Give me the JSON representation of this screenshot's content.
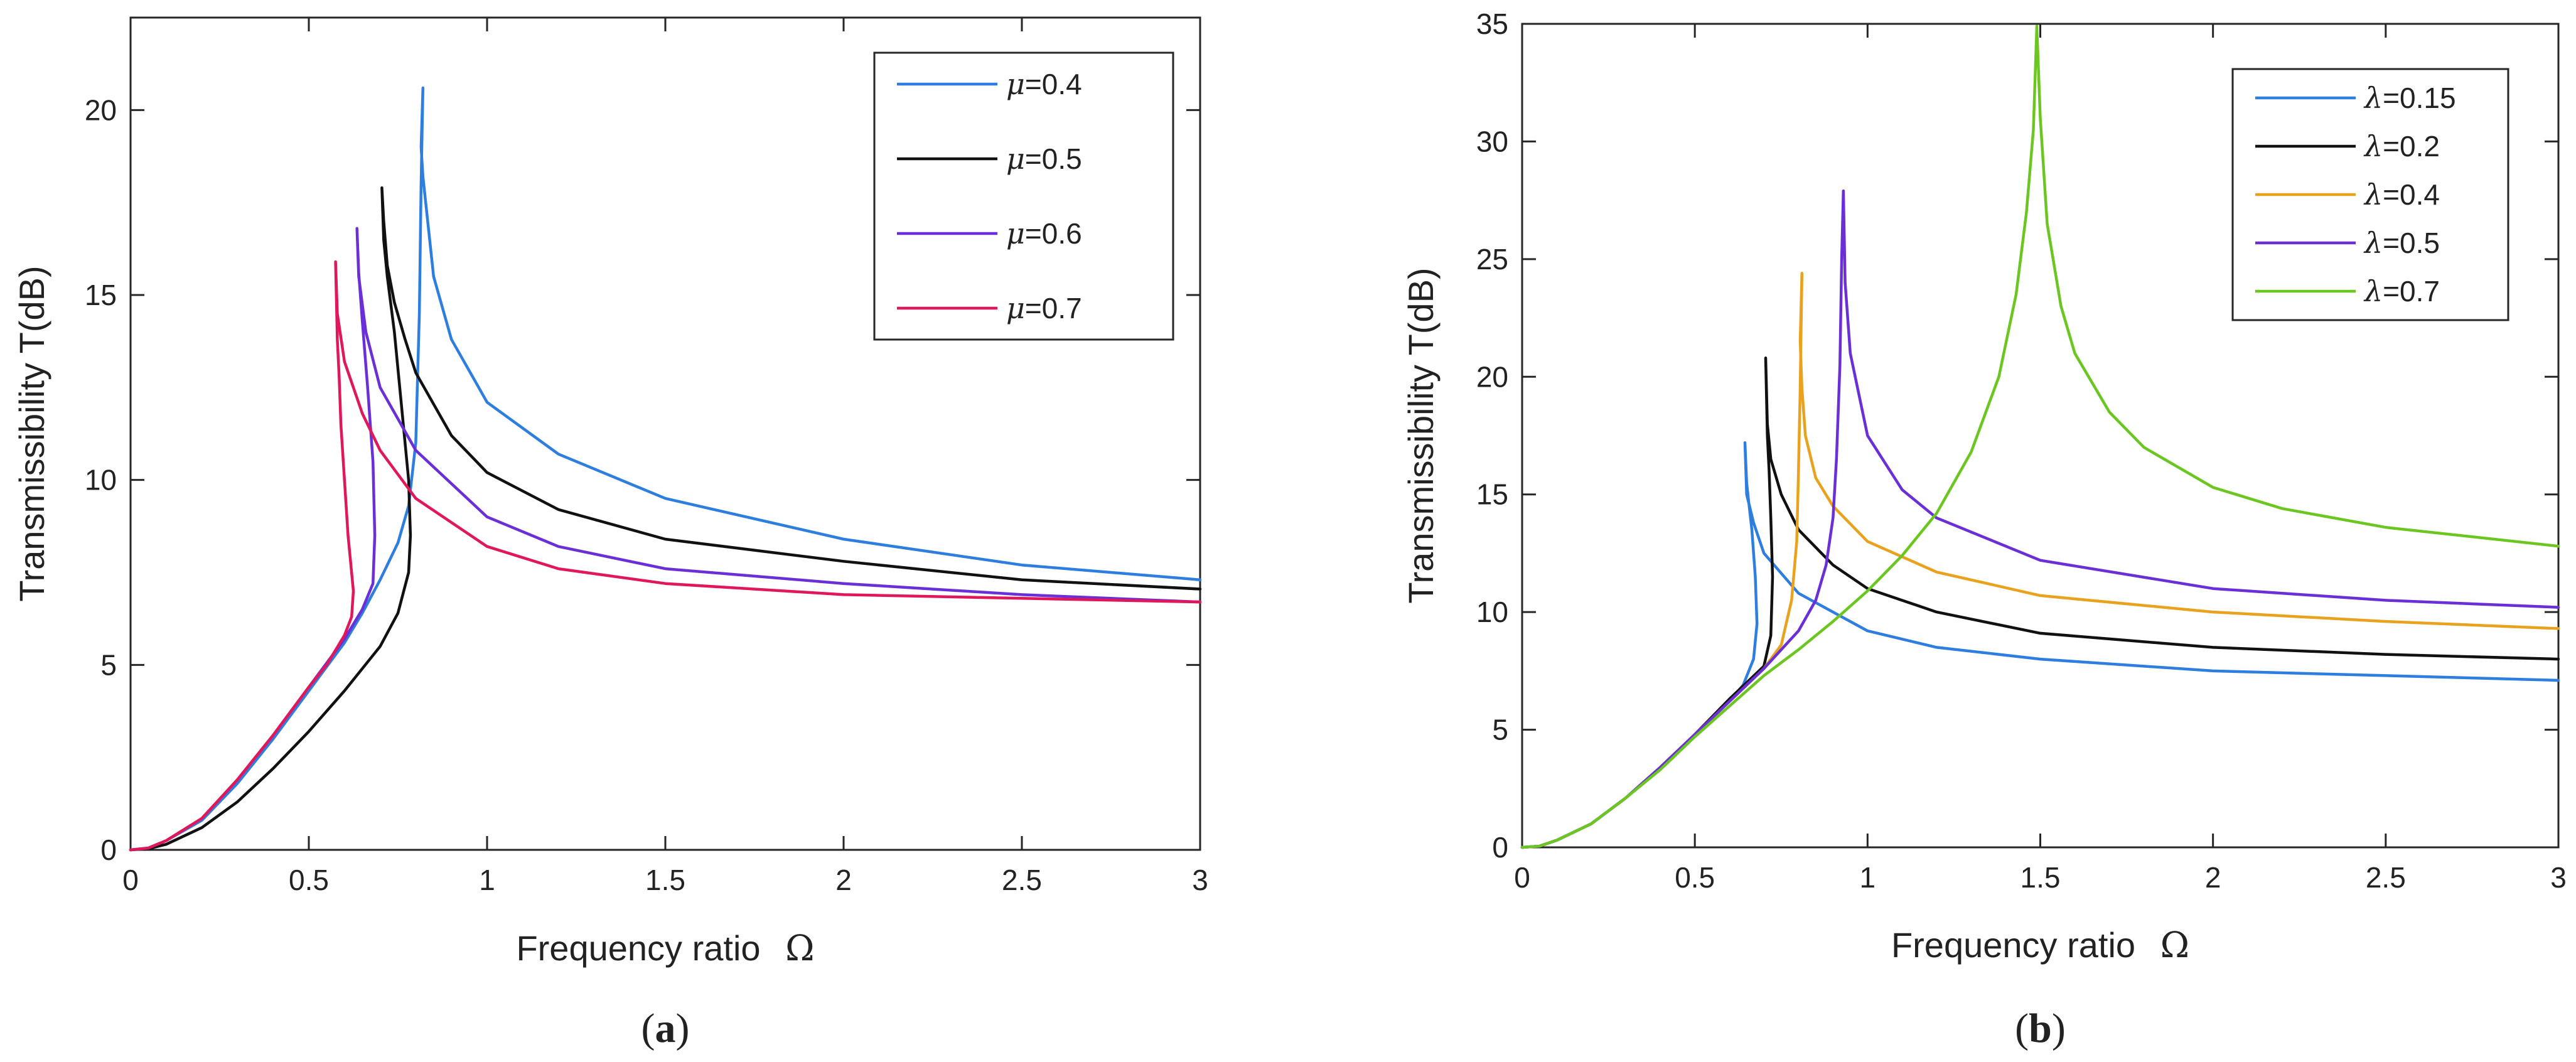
{
  "chart_data": [
    {
      "type": "line",
      "panel": "a",
      "panel_label": {
        "open": "(",
        "letter": "a",
        "close": ")"
      },
      "xlabel": "Frequency ratio",
      "xlabel_symbol": "Ω",
      "ylabel": "Transmissibility T(dB)",
      "xlim": [
        0,
        3
      ],
      "ylim": [
        0,
        22.5
      ],
      "xticks": [
        0,
        0.5,
        1,
        1.5,
        2,
        2.5,
        3
      ],
      "xtick_labels": [
        "0",
        "0.5",
        "1",
        "1.5",
        "2",
        "2.5",
        "3"
      ],
      "yticks": [
        0,
        5,
        10,
        15,
        20
      ],
      "ytick_labels": [
        "0",
        "5",
        "10",
        "15",
        "20"
      ],
      "legend_position": "top-right",
      "series": [
        {
          "name": "μ=0.4",
          "symbol": "μ",
          "value": "=0.4",
          "color": "#2e7ee0",
          "x": [
            0,
            0.05,
            0.1,
            0.2,
            0.3,
            0.4,
            0.5,
            0.6,
            0.65,
            0.7,
            0.75,
            0.78,
            0.8,
            0.81,
            0.815,
            0.82,
            0.815,
            0.82,
            0.85,
            0.9,
            1.0,
            1.2,
            1.5,
            2.0,
            2.5,
            3.0
          ],
          "y": [
            0,
            0.05,
            0.25,
            0.8,
            1.8,
            3.0,
            4.3,
            5.6,
            6.4,
            7.3,
            8.3,
            9.3,
            11.0,
            14.5,
            18.0,
            20.6,
            19.0,
            18.2,
            15.5,
            13.8,
            12.1,
            10.7,
            9.5,
            8.4,
            7.7,
            7.3
          ],
          "markers": false
        },
        {
          "name": "μ=0.5",
          "symbol": "μ",
          "value": "=0.5",
          "color": "#111111",
          "x": [
            0,
            0.05,
            0.1,
            0.2,
            0.3,
            0.4,
            0.5,
            0.6,
            0.7,
            0.75,
            0.78,
            0.785,
            0.78,
            0.76,
            0.74,
            0.72,
            0.71,
            0.705,
            0.71,
            0.72,
            0.74,
            0.77,
            0.8,
            0.9,
            1.0,
            1.2,
            1.5,
            2.0,
            2.5,
            3.0
          ],
          "y": [
            0,
            0.03,
            0.15,
            0.6,
            1.3,
            2.2,
            3.2,
            4.3,
            5.5,
            6.4,
            7.5,
            8.5,
            10.0,
            12.0,
            14.0,
            15.5,
            16.5,
            17.9,
            17.0,
            15.8,
            14.8,
            13.8,
            12.9,
            11.2,
            10.2,
            9.2,
            8.4,
            7.8,
            7.3,
            7.05
          ],
          "markers": false
        },
        {
          "name": "μ=0.6",
          "symbol": "μ",
          "value": "=0.6",
          "color": "#6a2fd6",
          "x": [
            0,
            0.05,
            0.1,
            0.2,
            0.3,
            0.4,
            0.5,
            0.6,
            0.65,
            0.68,
            0.685,
            0.68,
            0.665,
            0.65,
            0.64,
            0.635,
            0.64,
            0.66,
            0.7,
            0.8,
            1.0,
            1.2,
            1.5,
            2.0,
            2.5,
            3.0
          ],
          "y": [
            0,
            0.05,
            0.25,
            0.85,
            1.9,
            3.1,
            4.4,
            5.7,
            6.5,
            7.2,
            8.5,
            10.5,
            12.5,
            14.3,
            15.6,
            16.8,
            15.5,
            14.0,
            12.5,
            10.8,
            9.0,
            8.2,
            7.6,
            7.2,
            6.9,
            6.7
          ],
          "markers": false
        },
        {
          "name": "μ=0.7",
          "symbol": "μ",
          "value": "=0.7",
          "color": "#e0185a",
          "x": [
            0,
            0.05,
            0.1,
            0.2,
            0.3,
            0.4,
            0.5,
            0.55,
            0.6,
            0.62,
            0.625,
            0.61,
            0.6,
            0.59,
            0.585,
            0.58,
            0.575,
            0.58,
            0.6,
            0.65,
            0.7,
            0.8,
            1.0,
            1.2,
            1.5,
            2.0,
            2.5,
            3.0
          ],
          "y": [
            0,
            0.05,
            0.25,
            0.85,
            1.9,
            3.1,
            4.4,
            5.0,
            5.8,
            6.3,
            7.0,
            8.5,
            10.0,
            11.5,
            12.8,
            13.8,
            15.9,
            14.5,
            13.2,
            11.8,
            10.8,
            9.5,
            8.2,
            7.6,
            7.2,
            6.9,
            6.8,
            6.7
          ],
          "markers": false
        }
      ]
    },
    {
      "type": "line",
      "panel": "b",
      "panel_label": {
        "open": "(",
        "letter": "b",
        "close": ")"
      },
      "xlabel": "Frequency ratio",
      "xlabel_symbol": "Ω",
      "ylabel": "Transmissibility T(dB)",
      "xlim": [
        0,
        3
      ],
      "ylim": [
        0,
        35
      ],
      "xticks": [
        0,
        0.5,
        1,
        1.5,
        2,
        2.5,
        3
      ],
      "xtick_labels": [
        "0",
        "0.5",
        "1",
        "1.5",
        "2",
        "2.5",
        "3"
      ],
      "yticks": [
        0,
        5,
        10,
        15,
        20,
        25,
        30,
        35
      ],
      "ytick_labels": [
        "0",
        "5",
        "10",
        "15",
        "20",
        "25",
        "30",
        "35"
      ],
      "legend_position": "top-right",
      "series": [
        {
          "name": "λ=0.15",
          "symbol": "λ",
          "value": "=0.15",
          "color": "#2e7ee0",
          "x": [
            0,
            0.05,
            0.1,
            0.2,
            0.3,
            0.4,
            0.5,
            0.6,
            0.64,
            0.67,
            0.68,
            0.675,
            0.665,
            0.655,
            0.65,
            0.645,
            0.65,
            0.67,
            0.7,
            0.8,
            1.0,
            1.2,
            1.5,
            2.0,
            2.5,
            3.0
          ],
          "y": [
            0,
            0.05,
            0.3,
            1.0,
            2.1,
            3.4,
            4.8,
            6.2,
            6.9,
            8.0,
            9.5,
            11.5,
            13.5,
            14.8,
            15.5,
            17.2,
            15.0,
            13.8,
            12.5,
            10.8,
            9.2,
            8.5,
            8.0,
            7.5,
            7.3,
            7.1
          ],
          "markers": false
        },
        {
          "name": "λ=0.2",
          "symbol": "λ",
          "value": "=0.2",
          "color": "#111111",
          "x": [
            0,
            0.05,
            0.1,
            0.2,
            0.3,
            0.4,
            0.5,
            0.6,
            0.65,
            0.7,
            0.72,
            0.725,
            0.72,
            0.715,
            0.71,
            0.705,
            0.71,
            0.72,
            0.75,
            0.8,
            0.9,
            1.0,
            1.2,
            1.5,
            2.0,
            2.5,
            3.0
          ],
          "y": [
            0,
            0.05,
            0.3,
            1.0,
            2.1,
            3.4,
            4.8,
            6.3,
            7.0,
            7.7,
            9.0,
            11.5,
            14.0,
            16.0,
            17.5,
            20.8,
            18.0,
            16.5,
            15.0,
            13.5,
            12.0,
            11.0,
            10.0,
            9.1,
            8.5,
            8.2,
            8.0
          ],
          "markers": false
        },
        {
          "name": "λ=0.4",
          "symbol": "λ",
          "value": "=0.4",
          "color": "#e8a21e",
          "x": [
            0,
            0.05,
            0.1,
            0.2,
            0.3,
            0.4,
            0.5,
            0.6,
            0.7,
            0.75,
            0.78,
            0.795,
            0.8,
            0.805,
            0.81,
            0.805,
            0.81,
            0.82,
            0.85,
            0.9,
            1.0,
            1.2,
            1.5,
            2.0,
            2.5,
            3.0
          ],
          "y": [
            0,
            0.05,
            0.3,
            1.0,
            2.1,
            3.4,
            4.8,
            6.2,
            7.6,
            8.6,
            10.5,
            13.0,
            16.0,
            19.5,
            24.4,
            21.5,
            19.5,
            17.5,
            15.7,
            14.5,
            13.0,
            11.7,
            10.7,
            10.0,
            9.6,
            9.3
          ],
          "markers": false
        },
        {
          "name": "λ=0.5",
          "symbol": "λ",
          "value": "=0.5",
          "color": "#6a2fd6",
          "x": [
            0,
            0.05,
            0.1,
            0.2,
            0.3,
            0.4,
            0.5,
            0.6,
            0.7,
            0.8,
            0.85,
            0.88,
            0.9,
            0.91,
            0.92,
            0.925,
            0.93,
            0.935,
            0.95,
            1.0,
            1.1,
            1.2,
            1.5,
            2.0,
            2.5,
            3.0
          ],
          "y": [
            0,
            0.05,
            0.3,
            1.0,
            2.1,
            3.4,
            4.8,
            6.2,
            7.6,
            9.2,
            10.5,
            12.0,
            14.0,
            16.5,
            20.5,
            25.0,
            27.9,
            24.0,
            21.0,
            17.5,
            15.2,
            14.0,
            12.2,
            11.0,
            10.5,
            10.2
          ],
          "markers": false
        },
        {
          "name": "λ=0.7",
          "symbol": "λ",
          "value": "=0.7",
          "color": "#6cc622",
          "x": [
            0,
            0.05,
            0.1,
            0.2,
            0.3,
            0.4,
            0.5,
            0.6,
            0.7,
            0.8,
            0.9,
            1.0,
            1.1,
            1.2,
            1.3,
            1.38,
            1.43,
            1.46,
            1.48,
            1.49,
            1.5,
            1.52,
            1.56,
            1.6,
            1.7,
            1.8,
            2.0,
            2.2,
            2.5,
            3.0
          ],
          "y": [
            0,
            0.05,
            0.3,
            1.0,
            2.1,
            3.3,
            4.7,
            6.0,
            7.3,
            8.4,
            9.6,
            10.9,
            12.4,
            14.2,
            16.8,
            20.0,
            23.5,
            27.0,
            30.5,
            34.9,
            31.0,
            26.5,
            23.0,
            21.0,
            18.5,
            17.0,
            15.3,
            14.4,
            13.6,
            12.8
          ],
          "markers": false
        }
      ]
    }
  ]
}
